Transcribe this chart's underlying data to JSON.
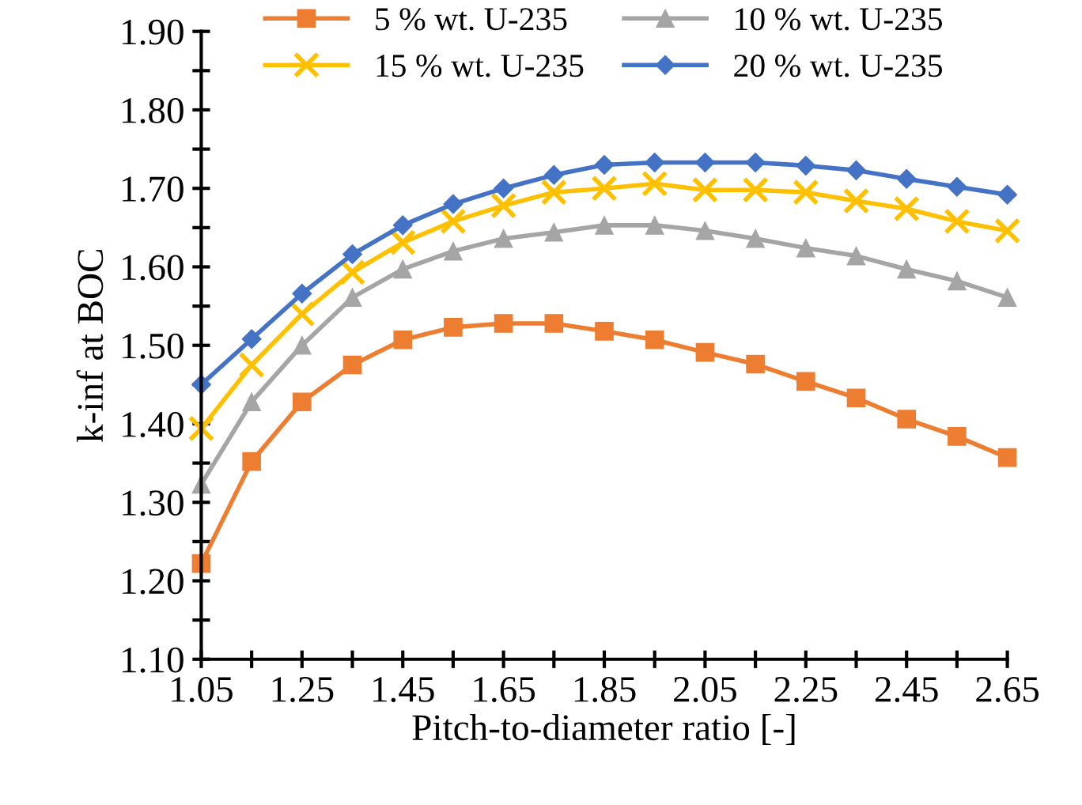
{
  "chart_data": {
    "type": "line",
    "xlabel": "Pitch-to-diameter ratio [-]",
    "ylabel": "k-inf at BOC",
    "x": [
      1.05,
      1.15,
      1.25,
      1.35,
      1.45,
      1.55,
      1.65,
      1.75,
      1.85,
      1.95,
      2.05,
      2.15,
      2.25,
      2.35,
      2.45,
      2.55,
      2.65
    ],
    "series": [
      {
        "name": "5 % wt. U-235",
        "color": "#ed7d31",
        "marker": "square",
        "values": [
          1.222,
          1.352,
          1.428,
          1.475,
          1.507,
          1.523,
          1.528,
          1.528,
          1.518,
          1.507,
          1.491,
          1.476,
          1.454,
          1.433,
          1.406,
          1.384,
          1.357
        ]
      },
      {
        "name": "10 % wt. U-235",
        "color": "#a5a5a5",
        "marker": "triangle",
        "values": [
          1.323,
          1.428,
          1.5,
          1.561,
          1.597,
          1.62,
          1.636,
          1.644,
          1.653,
          1.653,
          1.646,
          1.636,
          1.624,
          1.614,
          1.597,
          1.582,
          1.561
        ]
      },
      {
        "name": "15 % wt. U-235",
        "color": "#ffc000",
        "marker": "cross",
        "values": [
          1.394,
          1.475,
          1.54,
          1.593,
          1.631,
          1.658,
          1.678,
          1.695,
          1.7,
          1.706,
          1.698,
          1.698,
          1.695,
          1.684,
          1.674,
          1.658,
          1.646
        ]
      },
      {
        "name": "20 % wt. U-235",
        "color": "#4472c4",
        "marker": "diamond",
        "values": [
          1.45,
          1.508,
          1.566,
          1.616,
          1.653,
          1.68,
          1.7,
          1.717,
          1.73,
          1.733,
          1.733,
          1.733,
          1.729,
          1.723,
          1.712,
          1.702,
          1.692
        ]
      }
    ],
    "xlim": [
      1.05,
      2.65
    ],
    "xticks": [
      {
        "value": 1.05,
        "label": "1.05"
      },
      {
        "value": 1.15,
        "label": null
      },
      {
        "value": 1.25,
        "label": "1.25"
      },
      {
        "value": 1.35,
        "label": null
      },
      {
        "value": 1.45,
        "label": "1.45"
      },
      {
        "value": 1.55,
        "label": null
      },
      {
        "value": 1.65,
        "label": "1.65"
      },
      {
        "value": 1.75,
        "label": null
      },
      {
        "value": 1.85,
        "label": "1.85"
      },
      {
        "value": 1.95,
        "label": null
      },
      {
        "value": 2.05,
        "label": "2.05"
      },
      {
        "value": 2.15,
        "label": null
      },
      {
        "value": 2.25,
        "label": "2.25"
      },
      {
        "value": 2.35,
        "label": null
      },
      {
        "value": 2.45,
        "label": "2.45"
      },
      {
        "value": 2.55,
        "label": null
      },
      {
        "value": 2.65,
        "label": "2.65"
      }
    ],
    "ylim": [
      1.1,
      1.9
    ],
    "yticks": [
      {
        "value": 1.1,
        "label": "1.10"
      },
      {
        "value": 1.15,
        "label": null
      },
      {
        "value": 1.2,
        "label": "1.20"
      },
      {
        "value": 1.25,
        "label": null
      },
      {
        "value": 1.3,
        "label": "1.30"
      },
      {
        "value": 1.35,
        "label": null
      },
      {
        "value": 1.4,
        "label": "1.40"
      },
      {
        "value": 1.45,
        "label": null
      },
      {
        "value": 1.5,
        "label": "1.50"
      },
      {
        "value": 1.55,
        "label": null
      },
      {
        "value": 1.6,
        "label": "1.60"
      },
      {
        "value": 1.65,
        "label": null
      },
      {
        "value": 1.7,
        "label": "1.70"
      },
      {
        "value": 1.75,
        "label": null
      },
      {
        "value": 1.8,
        "label": "1.80"
      },
      {
        "value": 1.85,
        "label": null
      },
      {
        "value": 1.9,
        "label": "1.90"
      }
    ],
    "grid": false,
    "legend": "top",
    "line_style": "solid"
  }
}
